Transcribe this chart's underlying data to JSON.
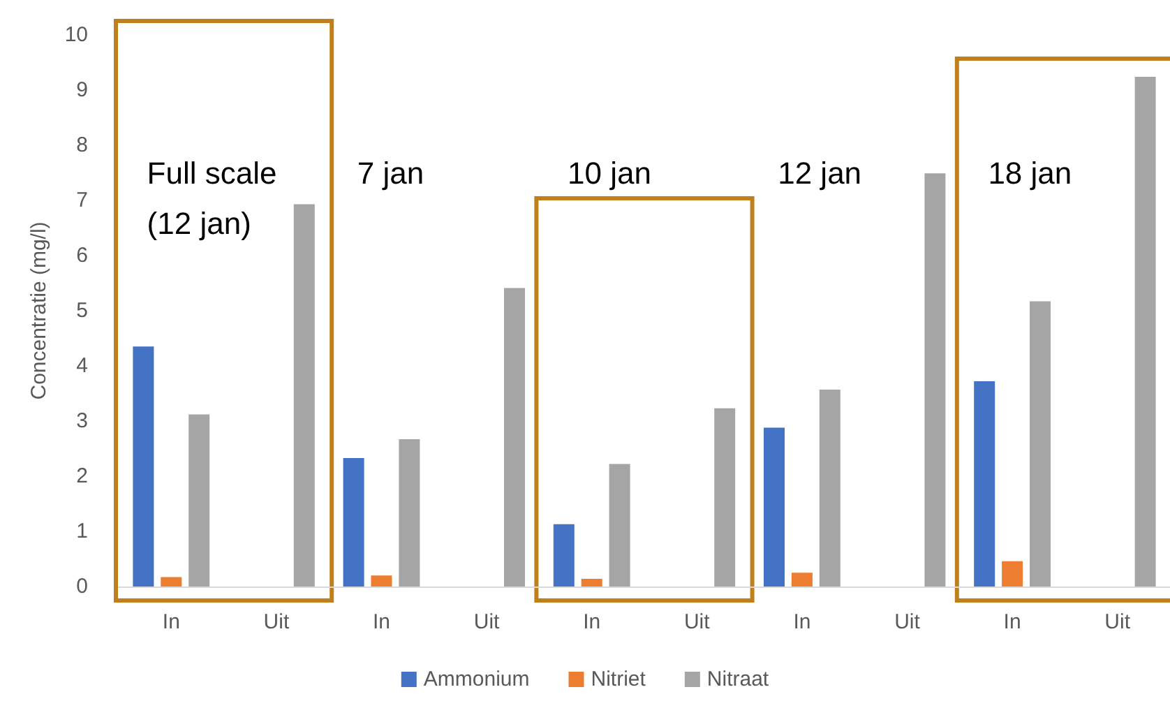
{
  "chart_data": {
    "type": "bar",
    "ylabel": "Concentratie (mg/l)",
    "categories": [
      "In",
      "Uit",
      "In",
      "Uit",
      "In",
      "Uit",
      "In",
      "Uit",
      "In",
      "Uit"
    ],
    "series": [
      {
        "name": "Ammonium",
        "color": "#4472c4",
        "values": [
          4.35,
          null,
          2.33,
          null,
          1.13,
          null,
          2.88,
          null,
          3.72,
          null
        ]
      },
      {
        "name": "Nitriet",
        "color": "#ed7d31",
        "values": [
          0.17,
          null,
          0.2,
          null,
          0.14,
          null,
          0.25,
          null,
          0.46,
          null
        ]
      },
      {
        "name": "Nitraat",
        "color": "#a5a5a5",
        "values": [
          3.12,
          6.93,
          2.67,
          5.41,
          2.22,
          3.23,
          3.57,
          7.49,
          5.17,
          9.24
        ]
      }
    ],
    "ylim": [
      0,
      10
    ],
    "yticks": [
      0,
      1,
      2,
      3,
      4,
      5,
      6,
      7,
      8,
      9,
      10
    ],
    "grid": false,
    "legend": "bottom",
    "annotations": [
      "Full scale\n(12 jan)",
      "7 jan",
      "10 jan",
      "12 jan",
      "18 jan"
    ]
  }
}
